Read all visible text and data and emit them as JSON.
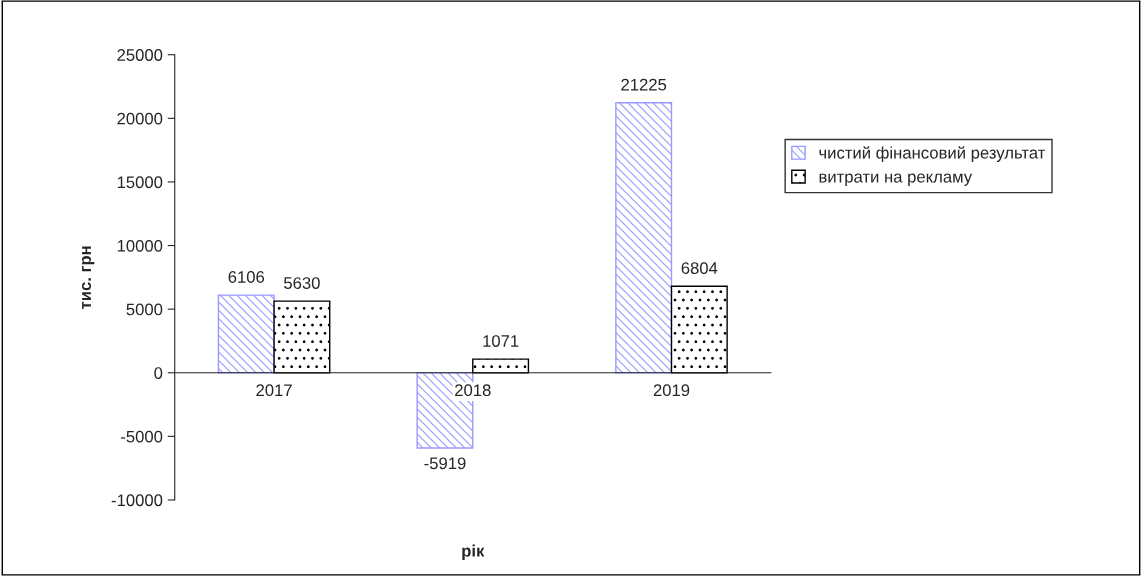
{
  "chart_data": {
    "type": "bar",
    "xlabel": "рік",
    "ylabel": "тис. грн",
    "categories": [
      "2017",
      "2018",
      "2019"
    ],
    "series": [
      {
        "name": "чистий фінансовий результат",
        "color": "#9999ff",
        "values": [
          6106,
          -5919,
          21225
        ]
      },
      {
        "name": "витрати на рекламу",
        "color": "#000000",
        "values": [
          5630,
          1071,
          6804
        ]
      }
    ],
    "ylim": [
      -10000,
      25000
    ],
    "yticks": [
      -10000,
      -5000,
      0,
      5000,
      10000,
      15000,
      20000,
      25000
    ],
    "grid": false,
    "legend": "right",
    "data_labels": true
  }
}
